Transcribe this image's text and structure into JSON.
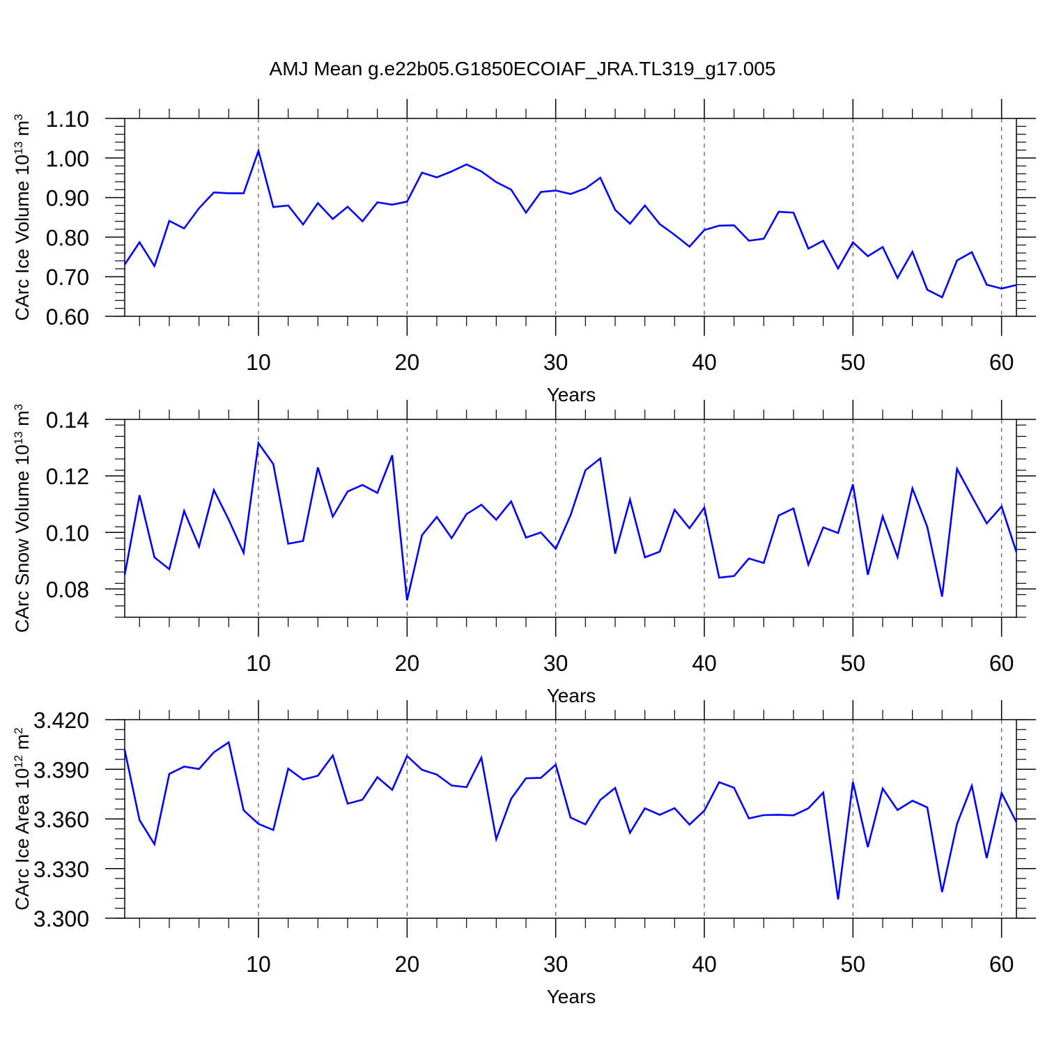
{
  "title": "AMJ Mean g.e22b05.G1850ECOIAF_JRA.TL319_g17.005",
  "colors": {
    "line": "#0000ff",
    "axis": "#000000",
    "grid": "#555555"
  },
  "chart_data": [
    {
      "type": "line",
      "ylabel_main": "CArc Ice Volume 10",
      "ylabel_exp": "13",
      "ylabel_unit": " m",
      "ylabel_unit_exp": "3",
      "xlabel": "Years",
      "xlim": [
        1,
        61
      ],
      "ylim": [
        0.6,
        1.1
      ],
      "xticks": [
        10,
        20,
        30,
        40,
        50,
        60
      ],
      "xtick_labels": [
        "10",
        "20",
        "30",
        "40",
        "50",
        "60"
      ],
      "yticks": [
        0.6,
        0.7,
        0.8,
        0.9,
        1.0,
        1.1
      ],
      "ytick_labels": [
        "0.60",
        "0.70",
        "0.80",
        "0.90",
        "1.00",
        "1.10"
      ],
      "grid_x": [
        10,
        20,
        30,
        40,
        50,
        60
      ],
      "x": [
        1,
        2,
        3,
        4,
        5,
        6,
        7,
        8,
        9,
        10,
        11,
        12,
        13,
        14,
        15,
        16,
        17,
        18,
        19,
        20,
        21,
        22,
        23,
        24,
        25,
        26,
        27,
        28,
        29,
        30,
        31,
        32,
        33,
        34,
        35,
        36,
        37,
        38,
        39,
        40,
        41,
        42,
        43,
        44,
        45,
        46,
        47,
        48,
        49,
        50,
        51,
        52,
        53,
        54,
        55,
        56,
        57,
        58,
        59,
        60,
        61
      ],
      "values": [
        0.731,
        0.787,
        0.727,
        0.841,
        0.822,
        0.873,
        0.913,
        0.911,
        0.911,
        1.018,
        0.876,
        0.88,
        0.832,
        0.886,
        0.846,
        0.877,
        0.84,
        0.888,
        0.882,
        0.89,
        0.963,
        0.951,
        0.966,
        0.984,
        0.966,
        0.939,
        0.92,
        0.862,
        0.914,
        0.918,
        0.909,
        0.923,
        0.95,
        0.869,
        0.834,
        0.88,
        0.833,
        0.806,
        0.776,
        0.818,
        0.829,
        0.83,
        0.791,
        0.796,
        0.864,
        0.862,
        0.771,
        0.791,
        0.721,
        0.787,
        0.752,
        0.775,
        0.697,
        0.763,
        0.667,
        0.648,
        0.741,
        0.762,
        0.68,
        0.67,
        0.679
      ]
    },
    {
      "type": "line",
      "ylabel_main": "CArc Snow Volume 10",
      "ylabel_exp": "13",
      "ylabel_unit": " m",
      "ylabel_unit_exp": "3",
      "xlabel": "Years",
      "xlim": [
        1,
        61
      ],
      "ylim": [
        0.07,
        0.14
      ],
      "xticks": [
        10,
        20,
        30,
        40,
        50,
        60
      ],
      "xtick_labels": [
        "10",
        "20",
        "30",
        "40",
        "50",
        "60"
      ],
      "yticks": [
        0.08,
        0.1,
        0.12,
        0.14
      ],
      "ytick_labels": [
        "0.08",
        "0.10",
        "0.12",
        "0.14"
      ],
      "grid_x": [
        10,
        20,
        30,
        40,
        50,
        60
      ],
      "x": [
        1,
        2,
        3,
        4,
        5,
        6,
        7,
        8,
        9,
        10,
        11,
        12,
        13,
        14,
        15,
        16,
        17,
        18,
        19,
        20,
        21,
        22,
        23,
        24,
        25,
        26,
        27,
        28,
        29,
        30,
        31,
        32,
        33,
        34,
        35,
        36,
        37,
        38,
        39,
        40,
        41,
        42,
        43,
        44,
        45,
        46,
        47,
        48,
        49,
        50,
        51,
        52,
        53,
        54,
        55,
        56,
        57,
        58,
        59,
        60,
        61
      ],
      "values": [
        0.085,
        0.1132,
        0.0912,
        0.087,
        0.1076,
        0.095,
        0.115,
        0.1045,
        0.0928,
        0.1316,
        0.1242,
        0.096,
        0.097,
        0.123,
        0.1056,
        0.1145,
        0.1168,
        0.114,
        0.1273,
        0.076,
        0.099,
        0.1055,
        0.098,
        0.1065,
        0.1098,
        0.1045,
        0.111,
        0.0982,
        0.1,
        0.0942,
        0.1061,
        0.122,
        0.1262,
        0.0925,
        0.1116,
        0.0912,
        0.0932,
        0.108,
        0.1015,
        0.1088,
        0.084,
        0.0846,
        0.0908,
        0.0892,
        0.106,
        0.1085,
        0.0886,
        0.1018,
        0.0998,
        0.117,
        0.085,
        0.1057,
        0.0913,
        0.1156,
        0.102,
        0.0773,
        0.1225,
        0.1128,
        0.1032,
        0.1092,
        0.093
      ]
    },
    {
      "type": "line",
      "ylabel_main": "CArc Ice Area 10",
      "ylabel_exp": "12",
      "ylabel_unit": " m",
      "ylabel_unit_exp": "2",
      "xlabel": "Years",
      "xlim": [
        1,
        61
      ],
      "ylim": [
        3.3,
        3.42
      ],
      "xticks": [
        10,
        20,
        30,
        40,
        50,
        60
      ],
      "xtick_labels": [
        "10",
        "20",
        "30",
        "40",
        "50",
        "60"
      ],
      "yticks": [
        3.3,
        3.33,
        3.36,
        3.39,
        3.42
      ],
      "ytick_labels": [
        "3.300",
        "3.330",
        "3.360",
        "3.390",
        "3.420"
      ],
      "grid_x": [
        10,
        20,
        30,
        40,
        50,
        60
      ],
      "x": [
        1,
        2,
        3,
        4,
        5,
        6,
        7,
        8,
        9,
        10,
        11,
        12,
        13,
        14,
        15,
        16,
        17,
        18,
        19,
        20,
        21,
        22,
        23,
        24,
        25,
        26,
        27,
        28,
        29,
        30,
        31,
        32,
        33,
        34,
        35,
        36,
        37,
        38,
        39,
        40,
        41,
        42,
        43,
        44,
        45,
        46,
        47,
        48,
        49,
        50,
        51,
        52,
        53,
        54,
        55,
        56,
        57,
        58,
        59,
        60,
        61
      ],
      "values": [
        3.4017,
        3.3593,
        3.3447,
        3.3872,
        3.3916,
        3.3902,
        3.4003,
        3.4063,
        3.3652,
        3.357,
        3.3533,
        3.3904,
        3.3838,
        3.3861,
        3.3984,
        3.3692,
        3.3716,
        3.3852,
        3.3776,
        3.398,
        3.3897,
        3.3868,
        3.3802,
        3.3792,
        3.397,
        3.3478,
        3.3722,
        3.3846,
        3.3848,
        3.3928,
        3.3608,
        3.3567,
        3.3715,
        3.3787,
        3.3516,
        3.3664,
        3.3625,
        3.3665,
        3.3566,
        3.365,
        3.3822,
        3.3788,
        3.3603,
        3.3623,
        3.3625,
        3.3622,
        3.3664,
        3.3759,
        3.3114,
        3.3823,
        3.343,
        3.3784,
        3.3654,
        3.371,
        3.367,
        3.3158,
        3.357,
        3.38,
        3.3363,
        3.3756,
        3.358
      ]
    }
  ]
}
